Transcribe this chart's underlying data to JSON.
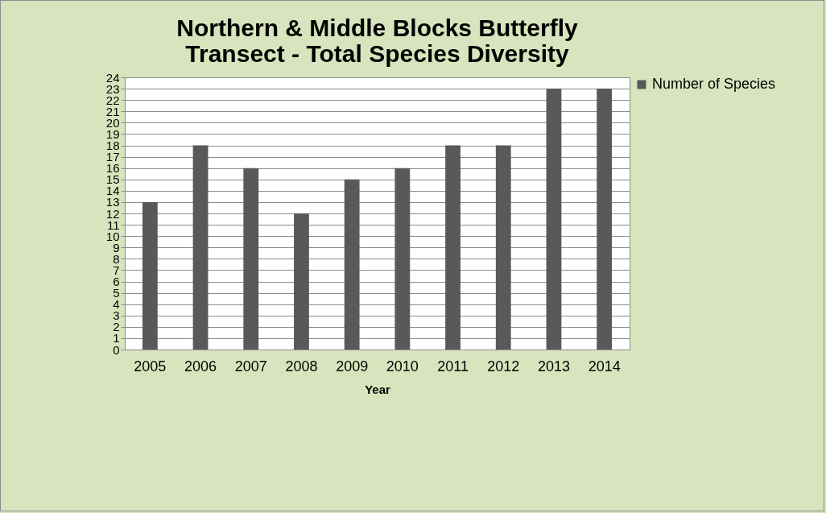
{
  "chart_data": {
    "type": "bar",
    "title": "Northern & Middle Blocks Butterfly Transect - Total Species Diversity",
    "xlabel": "Year",
    "categories": [
      "2005",
      "2006",
      "2007",
      "2008",
      "2009",
      "2010",
      "2011",
      "2012",
      "2013",
      "2014"
    ],
    "series": [
      {
        "name": "Number of Species",
        "color": "#595959",
        "values": [
          13,
          18,
          16,
          12,
          15,
          16,
          18,
          18,
          23,
          23
        ]
      }
    ],
    "ylim": [
      0,
      24
    ],
    "yticks": [
      0,
      1,
      2,
      3,
      4,
      5,
      6,
      7,
      8,
      9,
      10,
      11,
      12,
      13,
      14,
      15,
      16,
      17,
      18,
      19,
      20,
      21,
      22,
      23,
      24
    ],
    "grid": "y",
    "legend": "right"
  }
}
